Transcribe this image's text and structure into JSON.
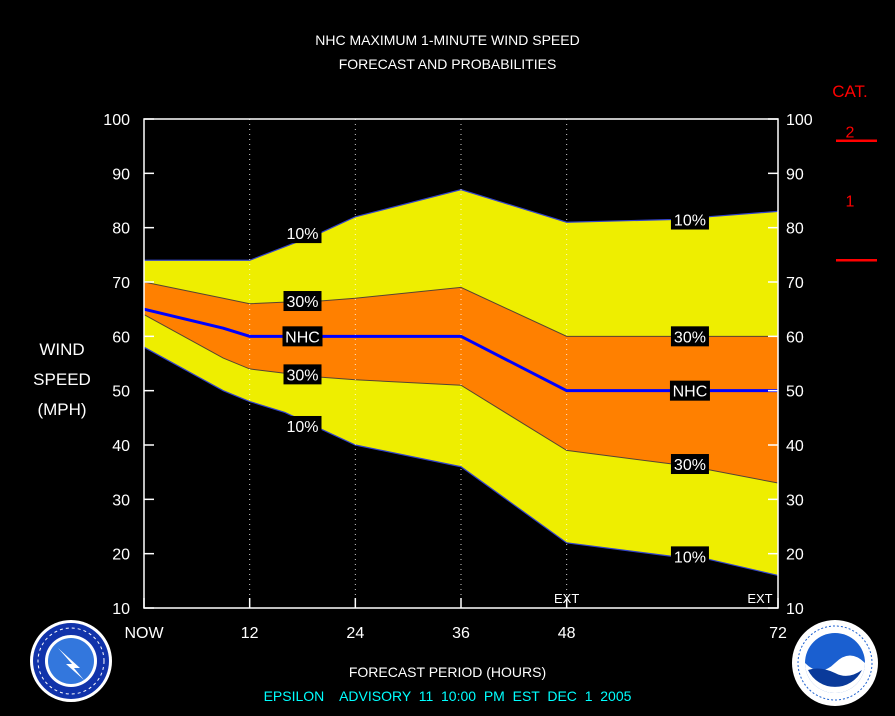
{
  "title_line1": "NHC MAXIMUM 1-MINUTE WIND SPEED",
  "title_line2": "FORECAST AND PROBABILITIES",
  "ylabel": [
    "WIND",
    "SPEED",
    "(MPH)"
  ],
  "xlabel": "FORECAST PERIOD (HOURS)",
  "advisory": "EPSILON    ADVISORY  11  10:00  PM  EST  DEC  1  2005",
  "category": {
    "title": "CAT.",
    "labels": [
      "2",
      "1"
    ]
  },
  "logos": {
    "left": "national-weather-service-logo",
    "right": "noaa-logo"
  },
  "colors": {
    "yellow": "#eeee00",
    "orange": "#ff8000",
    "nhc_line": "#0000ff",
    "cat": "#ff0000",
    "footer": "#00ffff"
  },
  "chart_data": {
    "type": "area",
    "x_ticks": [
      0,
      12,
      24,
      36,
      48,
      72
    ],
    "x_tick_labels": [
      "NOW",
      "12",
      "24",
      "36",
      "48",
      "72"
    ],
    "xlim": [
      0,
      72
    ],
    "ylim": [
      10,
      100
    ],
    "y_ticks": [
      10,
      20,
      30,
      40,
      50,
      60,
      70,
      80,
      90,
      100
    ],
    "ext_labels": [
      {
        "x": 48,
        "text": "EXT"
      },
      {
        "x": 72,
        "text": "EXT"
      }
    ],
    "x": [
      0,
      9,
      12,
      16,
      20,
      24,
      36,
      48,
      60,
      64,
      72
    ],
    "upper10": [
      74,
      74,
      74,
      76.5,
      79,
      82,
      87,
      81,
      81.5,
      82,
      83
    ],
    "upper30": [
      70,
      67,
      66,
      66.3,
      66.5,
      67,
      69,
      60,
      60,
      60,
      60
    ],
    "nhc": [
      65,
      61.5,
      60,
      60,
      60,
      60,
      60,
      50,
      50,
      50,
      50
    ],
    "lower30": [
      64,
      56,
      54,
      53.2,
      52.5,
      52,
      51,
      39,
      36.5,
      35.5,
      33
    ],
    "lower10": [
      58,
      50,
      48,
      46,
      43,
      40,
      36,
      22,
      19.5,
      19,
      16
    ],
    "labels": [
      {
        "text": "10%",
        "x": 18,
        "y": 79
      },
      {
        "text": "30%",
        "x": 18,
        "y": 66.5
      },
      {
        "text": "NHC",
        "x": 18,
        "y": 60
      },
      {
        "text": "30%",
        "x": 18,
        "y": 53
      },
      {
        "text": "10%",
        "x": 18,
        "y": 43.5
      },
      {
        "text": "10%",
        "x": 62,
        "y": 81.5
      },
      {
        "text": "30%",
        "x": 62,
        "y": 60
      },
      {
        "text": "NHC",
        "x": 62,
        "y": 50
      },
      {
        "text": "30%",
        "x": 62,
        "y": 36.5
      },
      {
        "text": "10%",
        "x": 62,
        "y": 19.5
      }
    ]
  }
}
